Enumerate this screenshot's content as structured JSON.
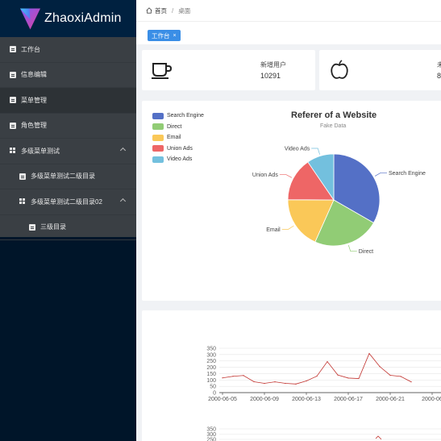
{
  "app": {
    "title": "ZhaoxiAdmin"
  },
  "sidebar": {
    "items": [
      {
        "label": "工作台",
        "icon": "document-icon",
        "level": 0
      },
      {
        "label": "信息编辑",
        "icon": "document-icon",
        "level": 0
      },
      {
        "label": "菜单管理",
        "icon": "document-icon",
        "level": 0,
        "active": true
      },
      {
        "label": "角色管理",
        "icon": "document-icon",
        "level": 0
      },
      {
        "label": "多级菜单测试",
        "icon": "grid-icon",
        "level": 0,
        "expanded": true
      },
      {
        "label": "多级菜单测试二级目录",
        "icon": "document-icon",
        "level": 1
      },
      {
        "label": "多级菜单测试二级目录02",
        "icon": "grid-icon",
        "level": 1,
        "expanded": true
      },
      {
        "label": "三级目录",
        "icon": "document-icon",
        "level": 2
      }
    ]
  },
  "breadcrumb": {
    "home": "首页",
    "separator": "/",
    "current": "桌面"
  },
  "tags": [
    {
      "label": "工作台",
      "close": "×"
    }
  ],
  "stats": [
    {
      "icon": "coffee-cup-icon",
      "label": "新增用户",
      "value": "10291"
    },
    {
      "icon": "apple-icon",
      "label": "未",
      "value": "8"
    }
  ],
  "colors": {
    "sidebar_bg": "#001529",
    "menu_bg": "#3a3f44",
    "accent": "#3a8ee6",
    "series_line": "#c23531"
  },
  "chart_data": [
    {
      "type": "pie",
      "title": "Referer of a Website",
      "subtitle": "Fake Data",
      "legend_position": "top-left",
      "labels": [
        "Search Engine",
        "Direct",
        "Email",
        "Union Ads",
        "Video Ads"
      ],
      "values": [
        1048,
        735,
        580,
        484,
        300
      ],
      "colors": [
        "#5470c6",
        "#91cc75",
        "#fac858",
        "#ee6666",
        "#73c0de"
      ]
    },
    {
      "type": "line",
      "x": [
        "2000-06-05",
        "2000-06-06",
        "2000-06-07",
        "2000-06-08",
        "2000-06-09",
        "2000-06-10",
        "2000-06-11",
        "2000-06-12",
        "2000-06-13",
        "2000-06-14",
        "2000-06-15",
        "2000-06-16",
        "2000-06-17",
        "2000-06-18",
        "2000-06-19",
        "2000-06-20",
        "2000-06-21",
        "2000-06-22",
        "2000-06-23"
      ],
      "x_ticks": [
        "2000-06-05",
        "2000-06-09",
        "2000-06-13",
        "2000-06-17",
        "2000-06-21",
        "2000-06"
      ],
      "series": [
        {
          "values": [
            116,
            129,
            135,
            86,
            73,
            85,
            73,
            68,
            92,
            130,
            245,
            139,
            115,
            111,
            309,
            206,
            137,
            128,
            85
          ]
        }
      ],
      "ylim": [
        0,
        350
      ],
      "yticks": [
        "350",
        "300",
        "250",
        "200",
        "150",
        "100",
        "50",
        "0"
      ],
      "grid": true
    },
    {
      "type": "line",
      "yticks": [
        "350",
        "300",
        "250"
      ],
      "partial": true
    }
  ]
}
